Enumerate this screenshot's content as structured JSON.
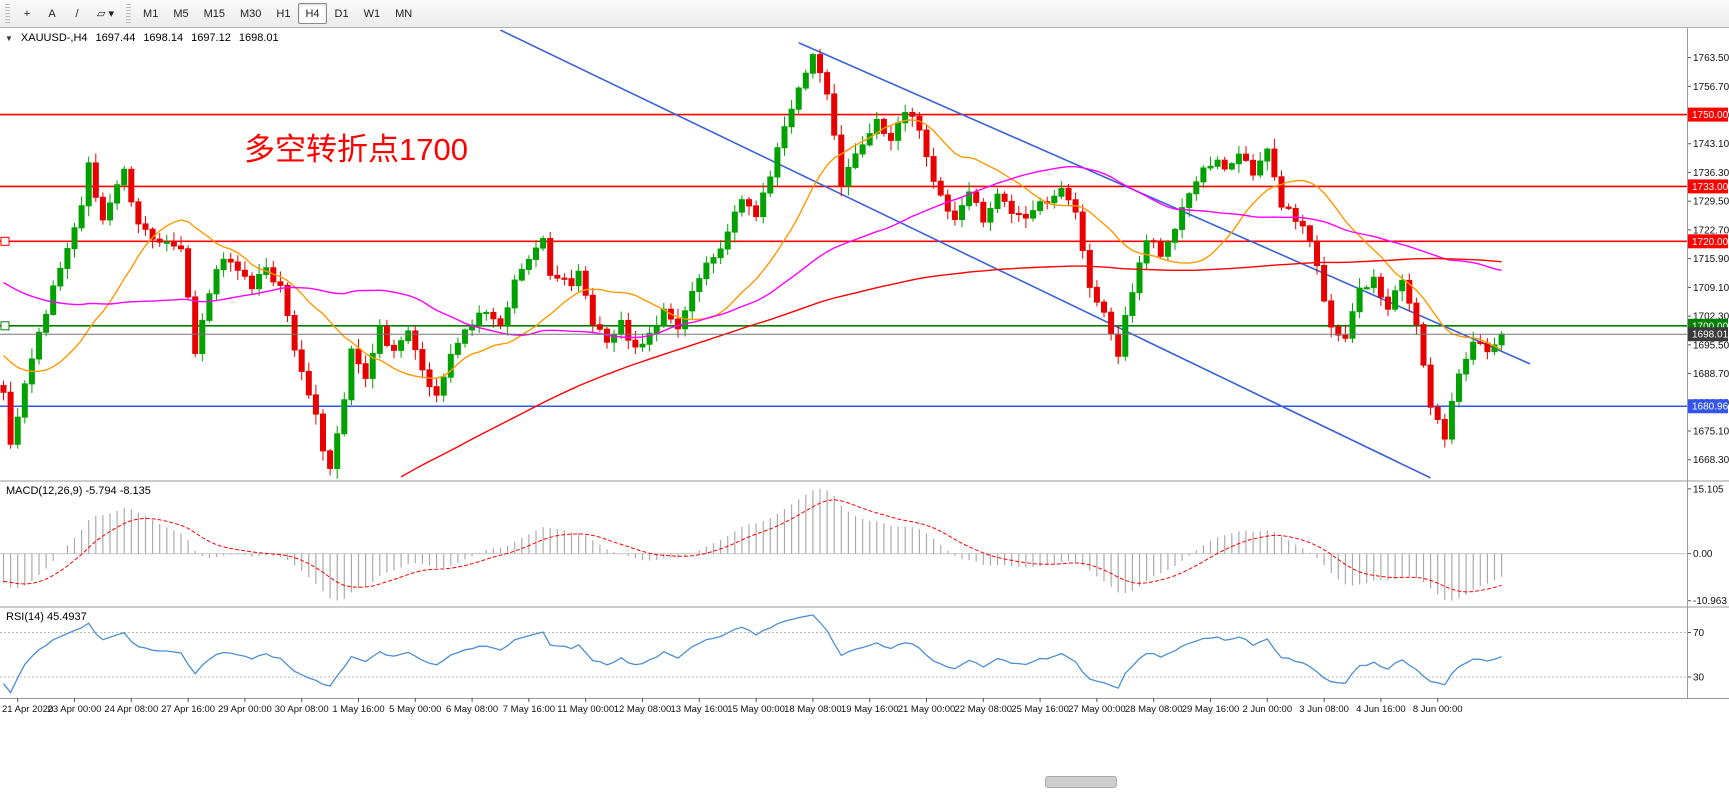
{
  "window": {
    "toolbar": {
      "tool_buttons": [
        {
          "name": "crosshair-tool-button",
          "glyph": "+"
        },
        {
          "name": "text-label-tool-button",
          "glyph": "A"
        },
        {
          "name": "trendline-tool-button",
          "glyph": "/"
        },
        {
          "name": "shapes-dropdown-button",
          "glyph": "▱ ▾"
        }
      ],
      "timeframes": [
        "M1",
        "M5",
        "M15",
        "M30",
        "H1",
        "H4",
        "D1",
        "W1",
        "MN"
      ],
      "active_timeframe": "H4"
    }
  },
  "chart": {
    "header": {
      "collapse_icon": "▼",
      "symbol_period": "XAUUSD-,H4",
      "open": "1697.44",
      "high": "1698.14",
      "low": "1697.12",
      "close": "1698.01"
    },
    "annotation": {
      "text": "多空转折点1700",
      "color": "#FF0000"
    },
    "macd_label": "MACD(12,26,9) -5.794 -8.135",
    "rsi_label": "RSI(14) 45.4937"
  },
  "chart_data": {
    "type": "candlestick+indicators",
    "symbol": "XAUUSD",
    "timeframe": "H4",
    "bars": 212,
    "colors": {
      "bull": "#00A100",
      "bear": "#E80000",
      "trendline": "#3A62D8",
      "macd_hist": "#ABABAB",
      "macd_signal": "#FF0000",
      "rsi": "#4B8FD5",
      "level_red": "#FF0000",
      "level_green": "#008000",
      "level_blue": "#3355EE",
      "current": "#777777"
    },
    "price_axis": {
      "min": 1663.5,
      "max": 1770.5,
      "labels": [
        "1763.50",
        "1756.70",
        "1749.90",
        "1743.10",
        "1736.30",
        "1729.50",
        "1722.70",
        "1715.90",
        "1709.10",
        "1702.30",
        "1695.50",
        "1688.70",
        "1681.90",
        "1675.10",
        "1668.30"
      ]
    },
    "time_axis": {
      "first_bar": 2,
      "bar_step": 8,
      "labels": [
        "21 Apr 2020",
        "23 Apr 00:00",
        "24 Apr 08:00",
        "27 Apr 16:00",
        "29 Apr 00:00",
        "30 Apr 08:00",
        "1 May 16:00",
        "5 May 00:00",
        "6 May 08:00",
        "7 May 16:00",
        "11 May 00:00",
        "12 May 08:00",
        "13 May 16:00",
        "15 May 00:00",
        "18 May 08:00",
        "19 May 16:00",
        "21 May 00:00",
        "22 May 08:00",
        "25 May 16:00",
        "27 May 00:00",
        "28 May 08:00",
        "29 May 16:00",
        "2 Jun 00:00",
        "3 Jun 08:00",
        "4 Jun 16:00",
        "8 Jun 00:00"
      ]
    },
    "close_path": [
      [
        0,
        1684
      ],
      [
        1,
        1672
      ],
      [
        4,
        1692
      ],
      [
        8,
        1714
      ],
      [
        11,
        1729
      ],
      [
        12,
        1738
      ],
      [
        14,
        1725
      ],
      [
        17,
        1736
      ],
      [
        19,
        1724
      ],
      [
        21,
        1721
      ],
      [
        25,
        1718
      ],
      [
        27,
        1694
      ],
      [
        28,
        1700
      ],
      [
        30,
        1713
      ],
      [
        32,
        1716
      ],
      [
        35,
        1708
      ],
      [
        37,
        1714
      ],
      [
        39,
        1709
      ],
      [
        42,
        1688
      ],
      [
        44,
        1678
      ],
      [
        45,
        1670
      ],
      [
        46,
        1666
      ],
      [
        48,
        1683
      ],
      [
        49,
        1695
      ],
      [
        51,
        1687
      ],
      [
        53,
        1699
      ],
      [
        55,
        1693
      ],
      [
        57,
        1700
      ],
      [
        59,
        1689
      ],
      [
        61,
        1684
      ],
      [
        63,
        1693
      ],
      [
        65,
        1699
      ],
      [
        68,
        1704
      ],
      [
        70,
        1699
      ],
      [
        72,
        1710
      ],
      [
        74,
        1716
      ],
      [
        76,
        1720
      ],
      [
        77,
        1713
      ],
      [
        80,
        1709
      ],
      [
        81,
        1712
      ],
      [
        83,
        1700
      ],
      [
        85,
        1696
      ],
      [
        87,
        1700
      ],
      [
        89,
        1694
      ],
      [
        91,
        1698
      ],
      [
        93,
        1703
      ],
      [
        95,
        1699
      ],
      [
        97,
        1709
      ],
      [
        100,
        1716
      ],
      [
        102,
        1721
      ],
      [
        104,
        1731
      ],
      [
        106,
        1727
      ],
      [
        108,
        1736
      ],
      [
        110,
        1746
      ],
      [
        112,
        1755
      ],
      [
        114,
        1763
      ],
      [
        116,
        1756
      ],
      [
        118,
        1733
      ],
      [
        120,
        1741
      ],
      [
        123,
        1748
      ],
      [
        125,
        1744
      ],
      [
        127,
        1750
      ],
      [
        129,
        1747
      ],
      [
        131,
        1734
      ],
      [
        134,
        1725
      ],
      [
        136,
        1731
      ],
      [
        138,
        1725
      ],
      [
        140,
        1731
      ],
      [
        142,
        1727
      ],
      [
        144,
        1725
      ],
      [
        146,
        1729
      ],
      [
        149,
        1732
      ],
      [
        151,
        1726
      ],
      [
        153,
        1709
      ],
      [
        155,
        1704
      ],
      [
        157,
        1694
      ],
      [
        159,
        1709
      ],
      [
        161,
        1721
      ],
      [
        163,
        1717
      ],
      [
        165,
        1724
      ],
      [
        168,
        1734
      ],
      [
        170,
        1739
      ],
      [
        172,
        1737
      ],
      [
        174,
        1741
      ],
      [
        176,
        1737
      ],
      [
        178,
        1741
      ],
      [
        180,
        1729
      ],
      [
        182,
        1724
      ],
      [
        184,
        1721
      ],
      [
        187,
        1699
      ],
      [
        189,
        1697
      ],
      [
        191,
        1709
      ],
      [
        193,
        1711
      ],
      [
        195,
        1704
      ],
      [
        197,
        1711
      ],
      [
        199,
        1699
      ],
      [
        201,
        1681
      ],
      [
        203,
        1674
      ],
      [
        205,
        1689
      ],
      [
        207,
        1696
      ],
      [
        209,
        1694
      ],
      [
        211,
        1698.01
      ]
    ],
    "prehistory_bars": 200,
    "prehistory_path": [
      [
        -200,
        1620
      ],
      [
        -190,
        1480
      ],
      [
        -165,
        1460
      ],
      [
        -135,
        1520
      ],
      [
        -105,
        1592
      ],
      [
        -75,
        1672
      ],
      [
        -52,
        1718
      ],
      [
        -34,
        1730
      ],
      [
        -16,
        1700
      ],
      [
        -1,
        1686
      ]
    ],
    "horizontal_lines": [
      {
        "price": 1750.0,
        "label": "1750.00",
        "color": "level_red",
        "left_marker": false
      },
      {
        "price": 1733.0,
        "label": "1733.00",
        "color": "level_red",
        "left_marker": false
      },
      {
        "price": 1720.0,
        "label": "1720.00",
        "color": "level_red",
        "left_marker": true
      },
      {
        "price": 1700.0,
        "label": "1700.00",
        "color": "level_green",
        "left_marker": true
      },
      {
        "price": 1680.96,
        "label": "1680.96",
        "color": "level_blue",
        "left_marker": false
      }
    ],
    "current_price": {
      "value": 1698.01,
      "label": "1698.01",
      "color": "current",
      "badge_color": "#3A3A3A"
    },
    "trendlines": [
      {
        "from": [
          70,
          1770
        ],
        "to": [
          201,
          1664
        ]
      },
      {
        "from": [
          112,
          1767
        ],
        "to": [
          215,
          1691
        ]
      }
    ],
    "moving_averages": [
      {
        "name": "ma-fast-line",
        "color": "#FF9900",
        "period": 18
      },
      {
        "name": "ma-mid-line",
        "color": "#FF00FF",
        "period": 48
      },
      {
        "name": "ma-slow-line",
        "color": "#FF0000",
        "period": 200
      }
    ],
    "macd": {
      "params": "12,26,9",
      "main_value": "-5.794",
      "signal_value": "-8.135",
      "axis_labels": [
        "15.105",
        "0.00",
        "-10.963"
      ],
      "range": [
        -12.2,
        16.7
      ]
    },
    "rsi": {
      "period": 14,
      "value": "45.4937",
      "levels": [
        70,
        30
      ],
      "axis_labels": [
        "70",
        "30"
      ],
      "range": [
        12,
        92
      ]
    }
  }
}
